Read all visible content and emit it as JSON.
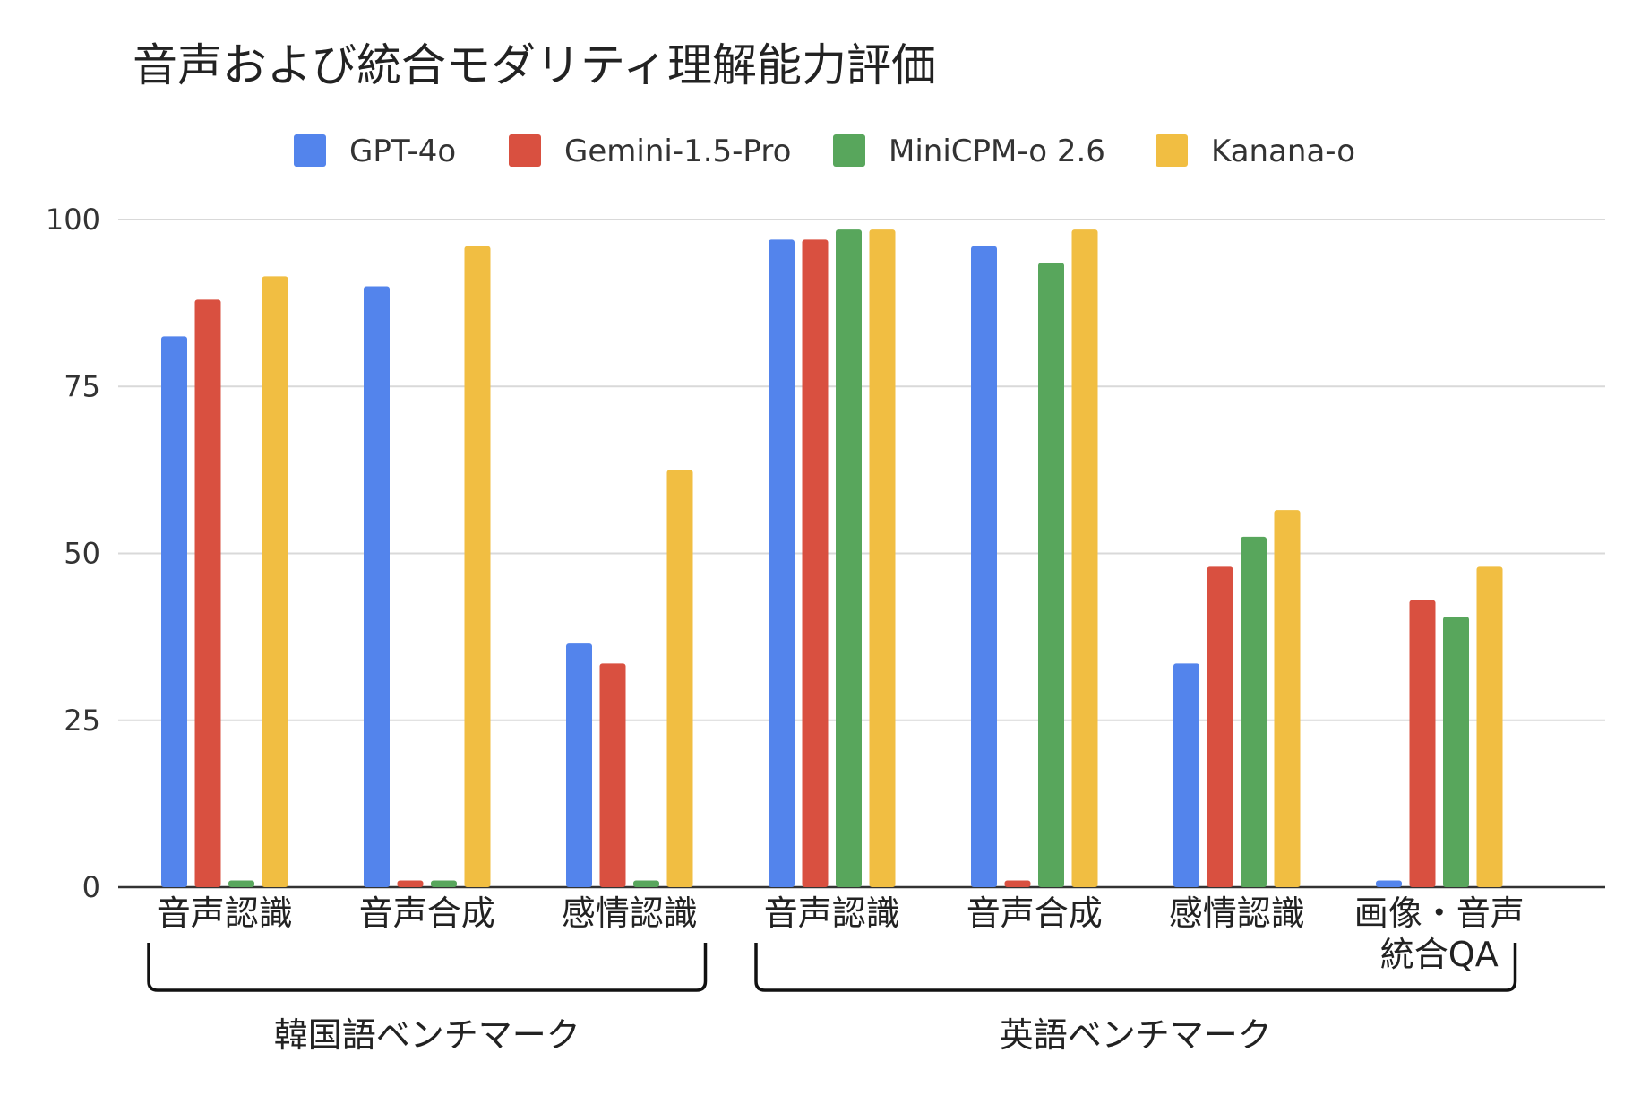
{
  "chart_data": {
    "type": "bar",
    "title": "音声および統合モダリティ理解能力評価",
    "xlabel": "",
    "ylabel": "",
    "ylim": [
      0,
      100
    ],
    "yticks": [
      0,
      25,
      50,
      75,
      100
    ],
    "grid": true,
    "legend_position": "top",
    "categories": [
      [
        "音声認識"
      ],
      [
        "音声合成"
      ],
      [
        "感情認識"
      ],
      [
        "音声認識"
      ],
      [
        "音声合成"
      ],
      [
        "感情認識"
      ],
      [
        "画像・音声",
        "統合QA"
      ]
    ],
    "groups": [
      {
        "label": "韓国語ベンチマーク",
        "categories": [
          0,
          2
        ]
      },
      {
        "label": "英語ベンチマーク",
        "categories": [
          3,
          6
        ]
      }
    ],
    "series": [
      {
        "name": "GPT-4o",
        "color": "#5384ec",
        "values": [
          82.5,
          90,
          36.5,
          97,
          96,
          33.5,
          1
        ]
      },
      {
        "name": "Gemini-1.5-Pro",
        "color": "#d95040",
        "values": [
          88,
          1,
          33.5,
          97,
          1,
          48,
          43
        ]
      },
      {
        "name": "MiniCPM-o 2.6",
        "color": "#58a65c",
        "values": [
          1,
          1,
          1,
          98.5,
          93.5,
          52.5,
          40.5
        ]
      },
      {
        "name": "Kanana-o",
        "color": "#f1be42",
        "values": [
          91.5,
          96,
          62.5,
          98.5,
          98.5,
          56.5,
          48
        ]
      }
    ]
  }
}
